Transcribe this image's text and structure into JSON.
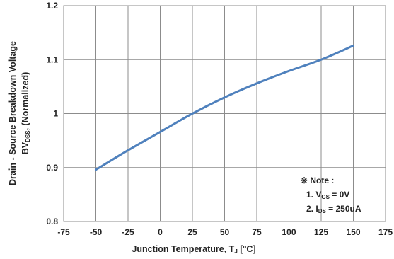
{
  "chart_data": {
    "type": "line",
    "xlabel": {
      "prefix": "Junction Temperature, T",
      "sub": "J",
      "suffix": " [°C]"
    },
    "ylabel": {
      "line1": "Drain - Source Breakdown Voltage",
      "prefix": "BV",
      "sub": "DSS",
      "suffix": ", (Normalized)"
    },
    "xlim": [
      -75,
      175
    ],
    "ylim": [
      0.8,
      1.2
    ],
    "xticks": [
      "-75",
      "-50",
      "-25",
      "0",
      "25",
      "50",
      "75",
      "100",
      "125",
      "150",
      "175"
    ],
    "yticks": [
      "0.8",
      "0.9",
      "1",
      "1.1",
      "1.2"
    ],
    "grid": true,
    "line_color": "#4f81bd",
    "series": [
      {
        "x": [
          -50,
          -25,
          0,
          25,
          50,
          75,
          100,
          125,
          150
        ],
        "y": [
          0.896,
          0.932,
          0.966,
          1.0,
          1.03,
          1.056,
          1.079,
          1.1,
          1.126
        ]
      }
    ],
    "note": {
      "title": "※ Note :",
      "items": [
        {
          "prefix": "1. V",
          "sub": "GS",
          "suffix": " = 0V"
        },
        {
          "prefix": "2. I",
          "sub": "DS",
          "suffix": " = 250uA"
        }
      ]
    }
  }
}
